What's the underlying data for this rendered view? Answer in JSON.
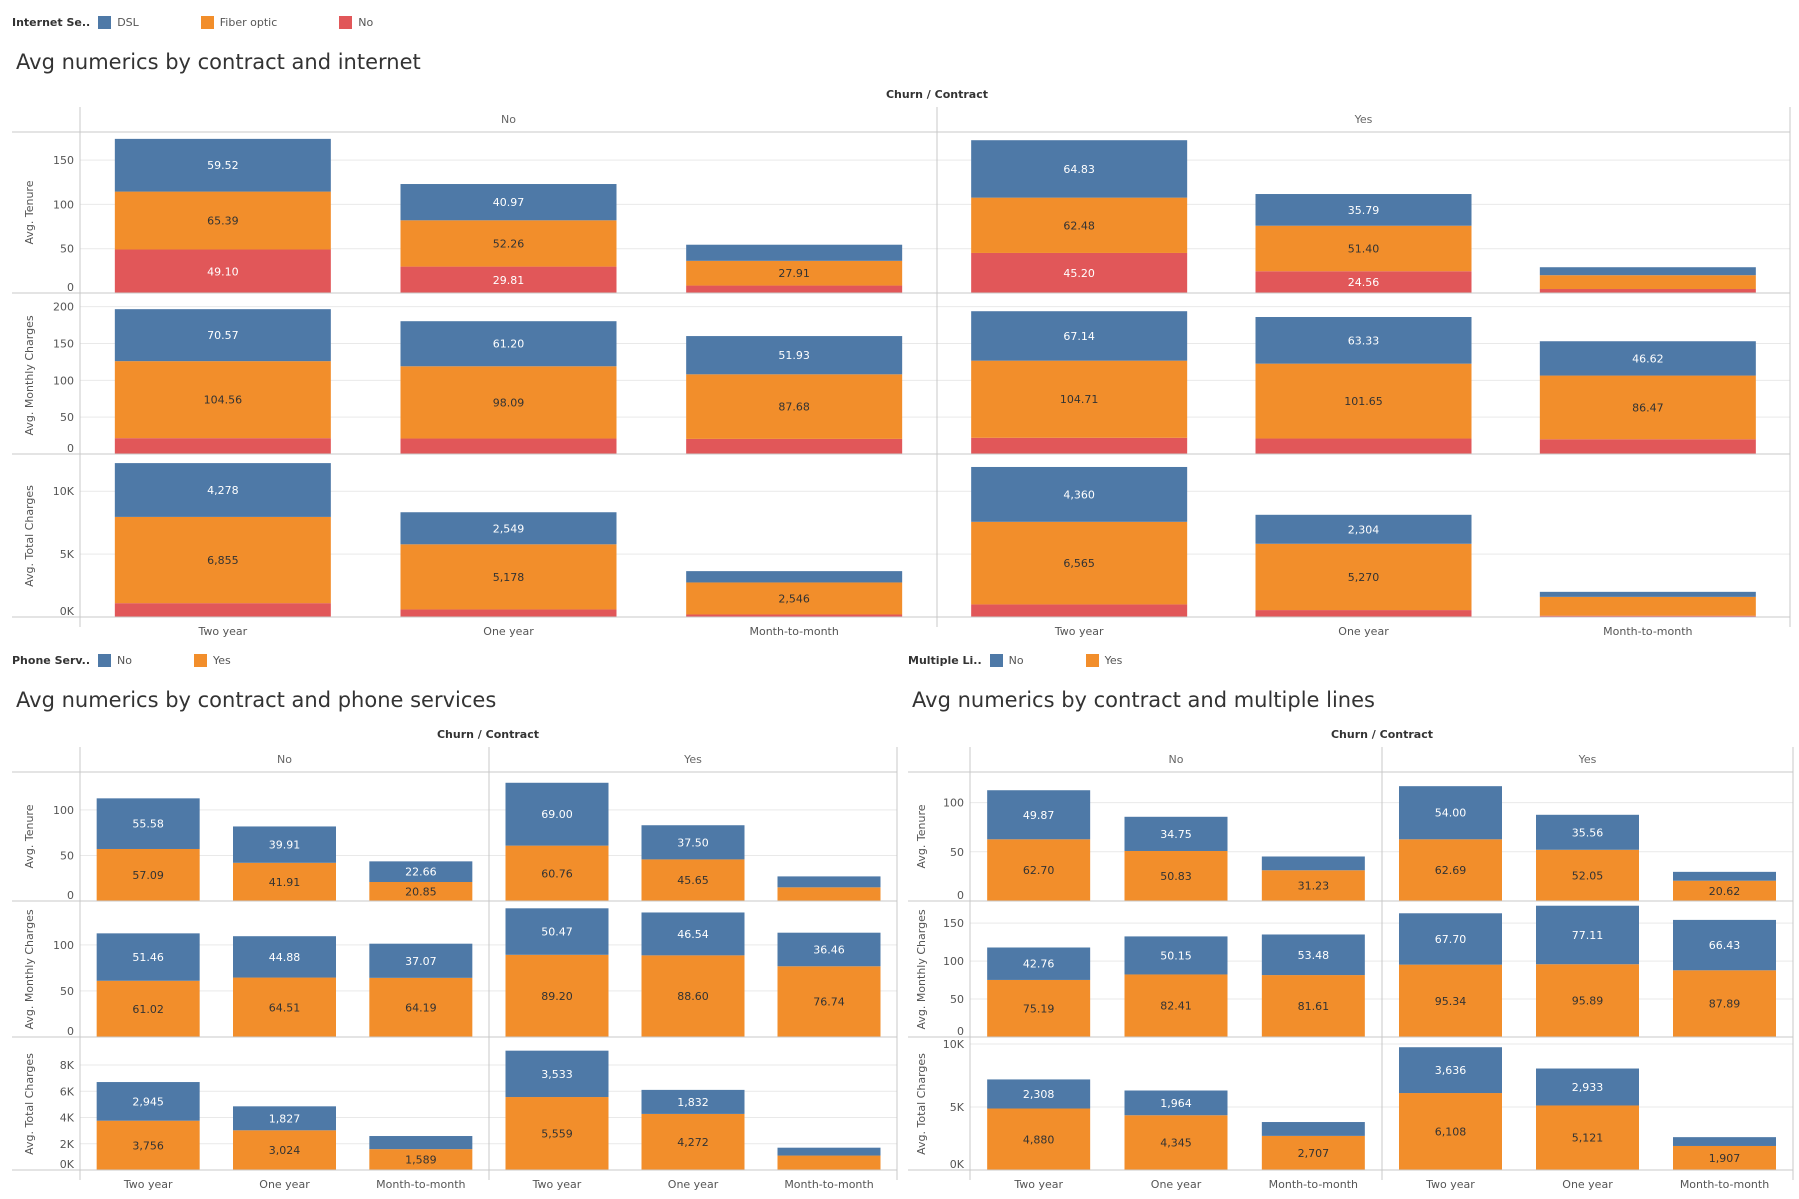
{
  "colors": {
    "blue": "#4e79a7",
    "orange": "#f28e2b",
    "red": "#e15759"
  },
  "legends": {
    "internet": {
      "title": "Internet Se..",
      "items": [
        {
          "label": "DSL",
          "color": "#4e79a7"
        },
        {
          "label": "Fiber optic",
          "color": "#f28e2b"
        },
        {
          "label": "No",
          "color": "#e15759"
        }
      ]
    },
    "phone": {
      "title": "Phone Serv..",
      "items": [
        {
          "label": "No",
          "color": "#4e79a7"
        },
        {
          "label": "Yes",
          "color": "#f28e2b"
        }
      ]
    },
    "multiple": {
      "title": "Multiple Li..",
      "items": [
        {
          "label": "No",
          "color": "#4e79a7"
        },
        {
          "label": "Yes",
          "color": "#f28e2b"
        }
      ]
    }
  },
  "chart_data": [
    {
      "type": "bar",
      "stacked": true,
      "title": "Avg numerics by contract and internet",
      "column_header": "Churn  /  Contract",
      "groups": [
        "No",
        "Yes"
      ],
      "categories": [
        "Two year",
        "One year",
        "Month-to-month"
      ],
      "series_field": "Internet Service",
      "series_names": [
        "No",
        "Fiber optic",
        "DSL"
      ],
      "series_colors": [
        "#e15759",
        "#f28e2b",
        "#4e79a7"
      ],
      "rows": [
        {
          "measure": "Avg. Tenure",
          "ylim": [
            0,
            175
          ],
          "ticks": [
            0,
            50,
            100,
            150
          ],
          "tick_labels": [
            "0",
            "50",
            "100",
            "150"
          ],
          "values": {
            "No": [
              [
                49.1,
                65.39,
                59.52
              ],
              [
                29.81,
                52.26,
                40.97
              ],
              [
                8.4,
                27.91,
                18.2
              ]
            ],
            "Yes": [
              [
                45.2,
                62.48,
                64.83
              ],
              [
                24.56,
                51.4,
                35.79
              ],
              [
                4.5,
                15.6,
                9.0
              ]
            ]
          },
          "labels": {
            "No": [
              [
                "49.10",
                "65.39",
                "59.52"
              ],
              [
                "29.81",
                "52.26",
                "40.97"
              ],
              [
                "",
                "27.91",
                ""
              ]
            ],
            "Yes": [
              [
                "45.20",
                "62.48",
                "64.83"
              ],
              [
                "24.56",
                "51.40",
                "35.79"
              ],
              [
                "",
                "",
                ""
              ]
            ]
          }
        },
        {
          "measure": "Avg. Monthly Charges",
          "ylim": [
            0,
            205
          ],
          "ticks": [
            0,
            50,
            100,
            150,
            200
          ],
          "tick_labels": [
            "0",
            "50",
            "100",
            "150",
            "200"
          ],
          "values": {
            "No": [
              [
                21.5,
                104.56,
                70.57
              ],
              [
                21.0,
                98.09,
                61.2
              ],
              [
                20.5,
                87.68,
                51.93
              ]
            ],
            "Yes": [
              [
                22.0,
                104.71,
                67.14
              ],
              [
                21.0,
                101.65,
                63.33
              ],
              [
                20.0,
                86.47,
                46.62
              ]
            ]
          },
          "labels": {
            "No": [
              [
                "",
                "104.56",
                "70.57"
              ],
              [
                "",
                "98.09",
                "61.20"
              ],
              [
                "",
                "87.68",
                "51.93"
              ]
            ],
            "Yes": [
              [
                "",
                "104.71",
                "67.14"
              ],
              [
                "",
                "101.65",
                "63.33"
              ],
              [
                "",
                "86.47",
                "46.62"
              ]
            ]
          }
        },
        {
          "measure": "Avg. Total Charges",
          "ylim": [
            0,
            12400
          ],
          "ticks": [
            0,
            5000,
            10000
          ],
          "tick_labels": [
            "0K",
            "5K",
            "10K"
          ],
          "values": {
            "No": [
              [
                1100,
                6855,
                4278
              ],
              [
                600,
                5178,
                2549
              ],
              [
                200,
                2546,
                900
              ]
            ],
            "Yes": [
              [
                1000,
                6565,
                4360
              ],
              [
                550,
                5270,
                2304
              ],
              [
                100,
                1500,
                400
              ]
            ]
          },
          "labels": {
            "No": [
              [
                "",
                "6,855",
                "4,278"
              ],
              [
                "",
                "5,178",
                "2,549"
              ],
              [
                "",
                "2,546",
                ""
              ]
            ],
            "Yes": [
              [
                "",
                "6,565",
                "4,360"
              ],
              [
                "",
                "5,270",
                "2,304"
              ],
              [
                "",
                "",
                ""
              ]
            ]
          }
        }
      ]
    },
    {
      "type": "bar",
      "stacked": true,
      "title": "Avg numerics by contract and phone services",
      "column_header": "Churn  /  Contract",
      "groups": [
        "No",
        "Yes"
      ],
      "categories": [
        "Two year",
        "One year",
        "Month-to-month"
      ],
      "series_field": "Phone Service",
      "series_names": [
        "Yes",
        "No"
      ],
      "series_colors": [
        "#f28e2b",
        "#4e79a7"
      ],
      "rows": [
        {
          "measure": "Avg. Tenure",
          "ylim": [
            0,
            135
          ],
          "ticks": [
            0,
            50,
            100
          ],
          "tick_labels": [
            "0",
            "50",
            "100"
          ],
          "values": {
            "No": [
              [
                57.09,
                55.58
              ],
              [
                41.91,
                39.91
              ],
              [
                20.85,
                22.66
              ]
            ],
            "Yes": [
              [
                60.76,
                69.0
              ],
              [
                45.65,
                37.5
              ],
              [
                15.0,
                12.0
              ]
            ]
          },
          "labels": {
            "No": [
              [
                "57.09",
                "55.58"
              ],
              [
                "41.91",
                "39.91"
              ],
              [
                "20.85",
                "22.66"
              ]
            ],
            "Yes": [
              [
                "60.76",
                "69.00"
              ],
              [
                "45.65",
                "37.50"
              ],
              [
                "",
                ""
              ]
            ]
          }
        },
        {
          "measure": "Avg. Monthly Charges",
          "ylim": [
            0,
            140
          ],
          "ticks": [
            0,
            50,
            100
          ],
          "tick_labels": [
            "0",
            "50",
            "100"
          ],
          "values": {
            "No": [
              [
                61.02,
                51.46
              ],
              [
                64.51,
                44.88
              ],
              [
                64.19,
                37.07
              ]
            ],
            "Yes": [
              [
                89.2,
                50.47
              ],
              [
                88.6,
                46.54
              ],
              [
                76.74,
                36.46
              ]
            ]
          },
          "labels": {
            "No": [
              [
                "61.02",
                "51.46"
              ],
              [
                "64.51",
                "44.88"
              ],
              [
                "64.19",
                "37.07"
              ]
            ],
            "Yes": [
              [
                "89.20",
                "50.47"
              ],
              [
                "88.60",
                "46.54"
              ],
              [
                "76.74",
                "36.46"
              ]
            ]
          }
        },
        {
          "measure": "Avg. Total Charges",
          "ylim": [
            0,
            9600
          ],
          "ticks": [
            0,
            2000,
            4000,
            6000,
            8000
          ],
          "tick_labels": [
            "0K",
            "2K",
            "4K",
            "6K",
            "8K"
          ],
          "values": {
            "No": [
              [
                3756,
                2945
              ],
              [
                3024,
                1827
              ],
              [
                1589,
                1000
              ]
            ],
            "Yes": [
              [
                5559,
                3533
              ],
              [
                4272,
                1832
              ],
              [
                1100,
                600
              ]
            ]
          },
          "labels": {
            "No": [
              [
                "3,756",
                "2,945"
              ],
              [
                "3,024",
                "1,827"
              ],
              [
                "1,589",
                ""
              ]
            ],
            "Yes": [
              [
                "5,559",
                "3,533"
              ],
              [
                "4,272",
                "1,832"
              ],
              [
                "",
                ""
              ]
            ]
          }
        }
      ]
    },
    {
      "type": "bar",
      "stacked": true,
      "title": "Avg numerics by contract and multiple lines",
      "column_header": "Churn  /  Contract",
      "groups": [
        "No",
        "Yes"
      ],
      "categories": [
        "Two year",
        "One year",
        "Month-to-month"
      ],
      "series_field": "Multiple Lines",
      "series_names": [
        "Yes",
        "No"
      ],
      "series_colors": [
        "#f28e2b",
        "#4e79a7"
      ],
      "rows": [
        {
          "measure": "Avg. Tenure",
          "ylim": [
            0,
            125
          ],
          "ticks": [
            0,
            50,
            100
          ],
          "tick_labels": [
            "0",
            "50",
            "100"
          ],
          "values": {
            "No": [
              [
                62.7,
                49.87
              ],
              [
                50.83,
                34.75
              ],
              [
                31.23,
                14.0
              ]
            ],
            "Yes": [
              [
                62.69,
                54.0
              ],
              [
                52.05,
                35.56
              ],
              [
                20.62,
                9.0
              ]
            ]
          },
          "labels": {
            "No": [
              [
                "62.70",
                "49.87"
              ],
              [
                "50.83",
                "34.75"
              ],
              [
                "31.23",
                ""
              ]
            ],
            "Yes": [
              [
                "62.69",
                "54.00"
              ],
              [
                "52.05",
                "35.56"
              ],
              [
                "20.62",
                ""
              ]
            ]
          }
        },
        {
          "measure": "Avg. Monthly Charges",
          "ylim": [
            0,
            170
          ],
          "ticks": [
            0,
            50,
            100,
            150
          ],
          "tick_labels": [
            "0",
            "50",
            "100",
            "150"
          ],
          "values": {
            "No": [
              [
                75.19,
                42.76
              ],
              [
                82.41,
                50.15
              ],
              [
                81.61,
                53.48
              ]
            ],
            "Yes": [
              [
                95.34,
                67.7
              ],
              [
                95.89,
                77.11
              ],
              [
                87.89,
                66.43
              ]
            ]
          },
          "labels": {
            "No": [
              [
                "75.19",
                "42.76"
              ],
              [
                "82.41",
                "50.15"
              ],
              [
                "81.61",
                "53.48"
              ]
            ],
            "Yes": [
              [
                "95.34",
                "67.70"
              ],
              [
                "95.89",
                "77.11"
              ],
              [
                "87.89",
                "66.43"
              ]
            ]
          }
        },
        {
          "measure": "Avg. Total Charges",
          "ylim": [
            0,
            10000
          ],
          "ticks": [
            0,
            5000,
            10000
          ],
          "tick_labels": [
            "0K",
            "5K",
            "10K"
          ],
          "values": {
            "No": [
              [
                4880,
                2308
              ],
              [
                4345,
                1964
              ],
              [
                2707,
                1100
              ]
            ],
            "Yes": [
              [
                6108,
                3636
              ],
              [
                5121,
                2933
              ],
              [
                1907,
                700
              ]
            ]
          },
          "labels": {
            "No": [
              [
                "4,880",
                "2,308"
              ],
              [
                "4,345",
                "1,964"
              ],
              [
                "2,707",
                ""
              ]
            ],
            "Yes": [
              [
                "6,108",
                "3,636"
              ],
              [
                "5,121",
                "2,933"
              ],
              [
                "1,907",
                ""
              ]
            ]
          }
        }
      ]
    }
  ]
}
